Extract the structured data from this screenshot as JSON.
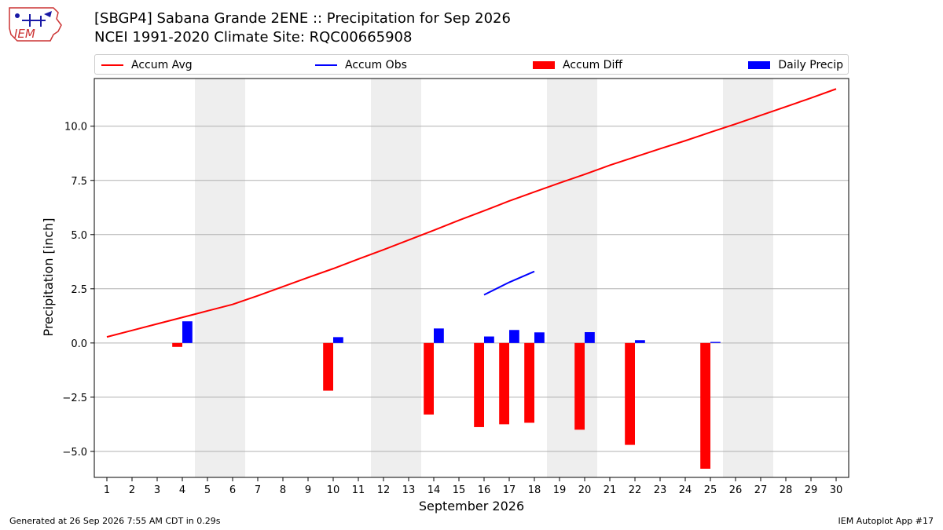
{
  "header": {
    "title_line1": "[SBGP4] Sabana Grande 2ENE :: Precipitation for Sep 2026",
    "title_line2": "NCEI 1991-2020 Climate Site: RQC00665908",
    "logo_text": "IEM"
  },
  "footer": {
    "generated": "Generated at 26 Sep 2026 7:55 AM CDT in 0.29s",
    "app": "IEM Autoplot App #17"
  },
  "colors": {
    "avg": "#ff0000",
    "obs": "#0000ff",
    "diff": "#ff0000",
    "daily": "#0000ff",
    "weekend": "#eeeeee",
    "grid": "#b0b0b0"
  },
  "legend": {
    "avg_label": "Accum Avg",
    "obs_label": "Accum Obs",
    "diff_label": "Accum Diff",
    "daily_label": "Daily Precip"
  },
  "chart_data": {
    "type": "bar",
    "title": "[SBGP4] Sabana Grande 2ENE :: Precipitation for Sep 2026",
    "xlabel": "September 2026",
    "ylabel": "Precipitation [inch]",
    "ylim": [
      -6.2,
      12.2
    ],
    "xlim": [
      0.5,
      30.5
    ],
    "yticks": [
      -5.0,
      -2.5,
      0.0,
      2.5,
      5.0,
      7.5,
      10.0
    ],
    "ytick_labels": [
      "−5.0",
      "−2.5",
      "0.0",
      "2.5",
      "5.0",
      "7.5",
      "10.0"
    ],
    "xticks": [
      1,
      2,
      3,
      4,
      5,
      6,
      7,
      8,
      9,
      10,
      11,
      12,
      13,
      14,
      15,
      16,
      17,
      18,
      19,
      20,
      21,
      22,
      23,
      24,
      25,
      26,
      27,
      28,
      29,
      30
    ],
    "xtick_labels": [
      "1",
      "2",
      "3",
      "4",
      "5",
      "6",
      "7",
      "8",
      "9",
      "10",
      "11",
      "12",
      "13",
      "14",
      "15",
      "16",
      "17",
      "18",
      "19",
      "20",
      "21",
      "22",
      "23",
      "24",
      "25",
      "26",
      "27",
      "28",
      "29",
      "30"
    ],
    "grid": "horizontal",
    "legend_position": "top",
    "weekends": [
      [
        5,
        6
      ],
      [
        12,
        13
      ],
      [
        19,
        20
      ],
      [
        26,
        27
      ]
    ],
    "series": [
      {
        "name": "Accum Avg",
        "type": "line",
        "x": [
          1,
          2,
          3,
          4,
          5,
          6,
          7,
          8,
          9,
          10,
          11,
          12,
          13,
          14,
          15,
          16,
          17,
          18,
          19,
          20,
          21,
          22,
          23,
          24,
          25,
          26,
          27,
          28,
          29,
          30
        ],
        "values": [
          0.28,
          0.58,
          0.88,
          1.18,
          1.48,
          1.78,
          2.18,
          2.6,
          3.02,
          3.43,
          3.87,
          4.3,
          4.75,
          5.2,
          5.66,
          6.1,
          6.55,
          6.97,
          7.38,
          7.78,
          8.2,
          8.58,
          8.96,
          9.33,
          9.72,
          10.1,
          10.5,
          10.9,
          11.3,
          11.72
        ]
      },
      {
        "name": "Accum Obs",
        "type": "line",
        "x": [
          16,
          17,
          18
        ],
        "values": [
          2.22,
          2.8,
          3.3
        ]
      },
      {
        "name": "Accum Diff",
        "type": "bar",
        "x": [
          4,
          10,
          14,
          16,
          17,
          18,
          20,
          22,
          25
        ],
        "values": [
          -0.18,
          -2.2,
          -3.3,
          -3.88,
          -3.75,
          -3.68,
          -4.0,
          -4.7,
          -5.8
        ]
      },
      {
        "name": "Daily Precip",
        "type": "bar",
        "x": [
          4,
          10,
          14,
          16,
          17,
          18,
          20,
          22,
          25
        ],
        "values": [
          1.0,
          0.27,
          0.67,
          0.3,
          0.6,
          0.49,
          0.5,
          0.13,
          0.05
        ]
      }
    ]
  }
}
